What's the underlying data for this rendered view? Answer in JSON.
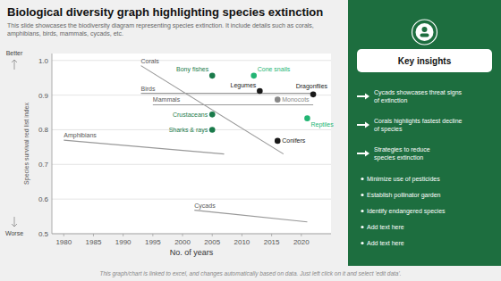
{
  "chart_data": {
    "type": "scatter",
    "title": "Biological diversity graph highlighting species extinction",
    "subtitle": "This slide showcases the biodiversity diagram representing species extinction. It include details such as corals, amphibians, birds, mammals, cycads, etc.",
    "xlabel": "No. of years",
    "ylabel": "Species survival red list index",
    "xlim": [
      1978,
      2025
    ],
    "ylim": [
      0.5,
      1.02
    ],
    "xticks": [
      1980,
      1985,
      1990,
      1995,
      2000,
      2005,
      2010,
      2015,
      2020
    ],
    "yticks": [
      0.5,
      0.6,
      0.7,
      0.8,
      0.9,
      {
        "value": 1.0,
        "label": "1.0"
      }
    ],
    "grid": true,
    "series": [
      {
        "name": "Corals",
        "type": "line",
        "x": [
          1993,
          2017
        ],
        "values": [
          0.985,
          0.73
        ]
      },
      {
        "name": "Birds",
        "type": "line",
        "x": [
          1993,
          2022
        ],
        "values": [
          0.905,
          0.905
        ]
      },
      {
        "name": "Mammals",
        "type": "line",
        "x": [
          1995,
          2022
        ],
        "values": [
          0.872,
          0.872
        ]
      },
      {
        "name": "Amphibians",
        "type": "line",
        "x": [
          1980,
          2007
        ],
        "values": [
          0.77,
          0.73
        ]
      },
      {
        "name": "Cycads",
        "type": "line",
        "x": [
          2002,
          2021
        ],
        "values": [
          0.568,
          0.534
        ]
      },
      {
        "name": "Bony fishes",
        "type": "scatter",
        "color": "#1a7a4a",
        "x": [
          2005
        ],
        "values": [
          0.956
        ]
      },
      {
        "name": "Cone snails",
        "type": "scatter",
        "color": "#22b573",
        "x": [
          2012
        ],
        "values": [
          0.956
        ]
      },
      {
        "name": "Crustaceans",
        "type": "scatter",
        "color": "#1a7a4a",
        "x": [
          2005
        ],
        "values": [
          0.844
        ]
      },
      {
        "name": "Sharks & rays",
        "type": "scatter",
        "color": "#1a7a4a",
        "x": [
          2005
        ],
        "values": [
          0.8
        ]
      },
      {
        "name": "Reptiles",
        "type": "scatter",
        "color": "#22b573",
        "x": [
          2021
        ],
        "values": [
          0.833
        ]
      },
      {
        "name": "Legumes",
        "type": "scatter",
        "color": "#1a1a1a",
        "x": [
          2013
        ],
        "values": [
          0.912
        ]
      },
      {
        "name": "Monocots",
        "type": "scatter",
        "color": "#888888",
        "x": [
          2016
        ],
        "values": [
          0.887
        ]
      },
      {
        "name": "Conifers",
        "type": "scatter",
        "color": "#1a1a1a",
        "x": [
          2016
        ],
        "values": [
          0.768
        ]
      },
      {
        "name": "Dragonflies",
        "type": "scatter",
        "color": "#1a1a1a",
        "x": [
          2022
        ],
        "values": [
          0.902
        ]
      }
    ],
    "annotations": [
      "Better",
      "Worse"
    ],
    "panel": {
      "color": "#1d6e3f",
      "title": "Key insights",
      "insights": [
        "Cycads showcases threat signs\nof extinction",
        "Corals highlights fastest decline\nof species",
        "Strategies to reduce\nspecies extinction"
      ],
      "bullets": [
        "Minimize use of pesticides",
        "Establish pollinator garden",
        "Identify endangered species",
        "Add text here",
        "Add text here"
      ]
    },
    "footer": "This graph/chart is linked to excel, and changes automatically based on data. Just left click on it and select 'edit data'."
  }
}
